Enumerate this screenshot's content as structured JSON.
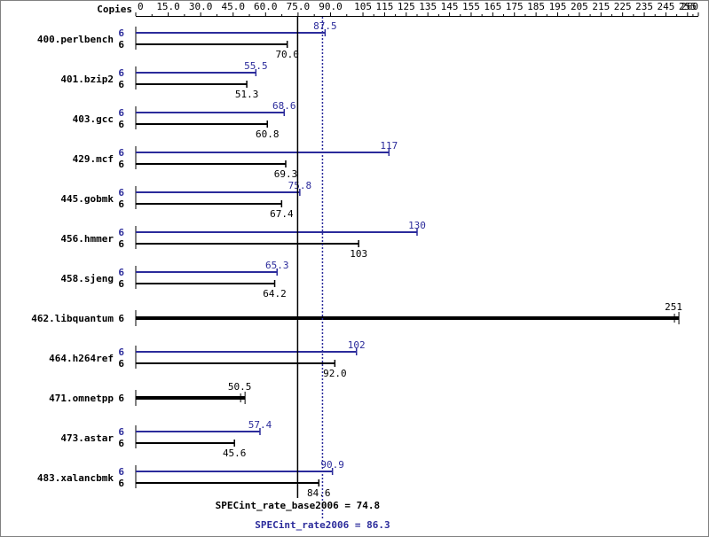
{
  "chart_data": {
    "type": "bar",
    "orientation": "horizontal",
    "header_label": "Copies",
    "xlim": [
      0,
      260
    ],
    "ticks": [
      "0",
      "15.0",
      "30.0",
      "45.0",
      "60.0",
      "75.0",
      "90.0",
      "105",
      "115",
      "125",
      "135",
      "145",
      "155",
      "165",
      "175",
      "185",
      "195",
      "205",
      "215",
      "225",
      "235",
      "245",
      "255",
      "260"
    ],
    "colors": {
      "peak": "#2b2b9b",
      "base": "#000000"
    },
    "benchmarks": [
      {
        "name": "400.perlbench",
        "copies_peak": "6",
        "copies_base": "6",
        "peak": 87.5,
        "peak_label": "87.5",
        "base": 70.0,
        "base_label": "70.0"
      },
      {
        "name": "401.bzip2",
        "copies_peak": "6",
        "copies_base": "6",
        "peak": 55.5,
        "peak_label": "55.5",
        "base": 51.3,
        "base_label": "51.3"
      },
      {
        "name": "403.gcc",
        "copies_peak": "6",
        "copies_base": "6",
        "peak": 68.6,
        "peak_label": "68.6",
        "base": 60.8,
        "base_label": "60.8"
      },
      {
        "name": "429.mcf",
        "copies_peak": "6",
        "copies_base": "6",
        "peak": 117,
        "peak_label": "117",
        "base": 69.3,
        "base_label": "69.3"
      },
      {
        "name": "445.gobmk",
        "copies_peak": "6",
        "copies_base": "6",
        "peak": 75.8,
        "peak_label": "75.8",
        "base": 67.4,
        "base_label": "67.4"
      },
      {
        "name": "456.hmmer",
        "copies_peak": "6",
        "copies_base": "6",
        "peak": 130,
        "peak_label": "130",
        "base": 103,
        "base_label": "103"
      },
      {
        "name": "458.sjeng",
        "copies_peak": "6",
        "copies_base": "6",
        "peak": 65.3,
        "peak_label": "65.3",
        "base": 64.2,
        "base_label": "64.2"
      },
      {
        "name": "462.libquantum",
        "copies_base": "6",
        "base": 251,
        "base_label": "251",
        "single": true
      },
      {
        "name": "464.h264ref",
        "copies_peak": "6",
        "copies_base": "6",
        "peak": 102,
        "peak_label": "102",
        "base": 92.0,
        "base_label": "92.0"
      },
      {
        "name": "471.omnetpp",
        "copies_base": "6",
        "base": 50.5,
        "base_label": "50.5",
        "single": true
      },
      {
        "name": "473.astar",
        "copies_peak": "6",
        "copies_base": "6",
        "peak": 57.4,
        "peak_label": "57.4",
        "base": 45.6,
        "base_label": "45.6"
      },
      {
        "name": "483.xalancbmk",
        "copies_peak": "6",
        "copies_base": "6",
        "peak": 90.9,
        "peak_label": "90.9",
        "base": 84.6,
        "base_label": "84.6"
      }
    ],
    "reference_lines": [
      {
        "name": "base",
        "label": "SPECint_rate_base2006 = 74.8",
        "value": 74.8
      },
      {
        "name": "peak",
        "label": "SPECint_rate2006 = 86.3",
        "value": 86.3
      }
    ]
  }
}
